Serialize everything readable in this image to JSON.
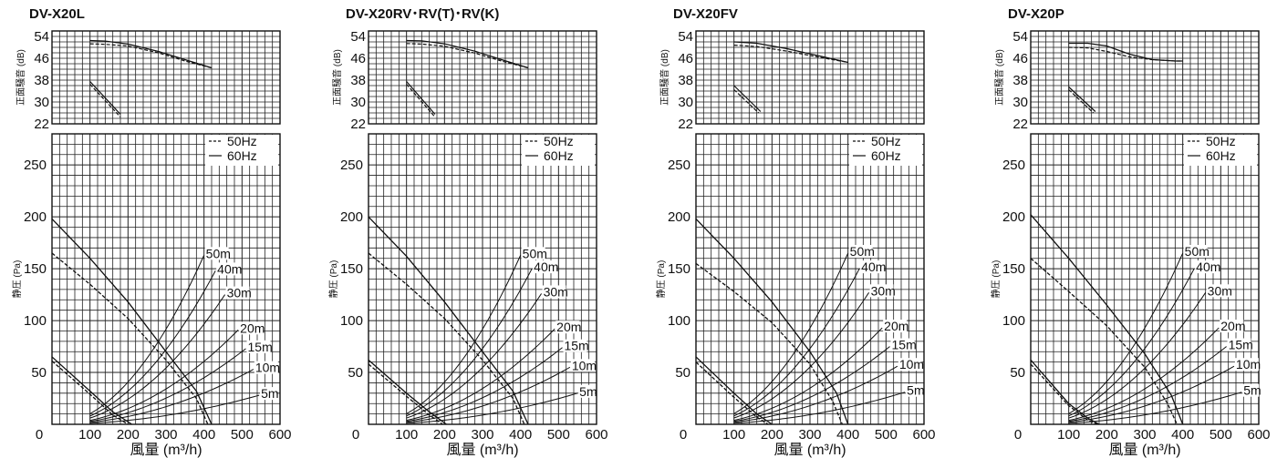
{
  "charts": [
    {
      "title": "DV-X20L",
      "xlabel": "風量 (m³/h)",
      "noise": {
        "ylabel": "正面騒音 (dB)",
        "yticks": [
          "54",
          "46",
          "38",
          "30",
          "22"
        ],
        "ylim": [
          22,
          56
        ],
        "series": [
          {
            "name": "60Hz",
            "style": "solid",
            "x": [
              100,
              140,
              200,
              280,
              350,
              420
            ],
            "y": [
              52.5,
              52.3,
              51.2,
              48.5,
              45.5,
              42.5
            ]
          },
          {
            "name": "50Hz",
            "style": "dashed",
            "x": [
              100,
              140,
              200,
              280,
              350,
              420
            ],
            "y": [
              51.3,
              51.1,
              50.5,
              48,
              45,
              42.5
            ]
          },
          {
            "name": "60Hz",
            "style": "solid",
            "x": [
              100,
              180
            ],
            "y": [
              37.5,
              25.5
            ]
          },
          {
            "name": "50Hz",
            "style": "dashed",
            "x": [
              100,
              180
            ],
            "y": [
              36.5,
              24.5
            ]
          }
        ]
      },
      "pressure": {
        "ylabel": "静圧 (Pa)",
        "yticks": [
          "250",
          "200",
          "150",
          "100",
          "50"
        ],
        "ylim": [
          0,
          280
        ],
        "series": [
          {
            "name": "60Hz",
            "style": "solid",
            "x": [
              0,
              100,
              200,
              300,
              380,
              420
            ],
            "y": [
              198,
              160,
              118,
              70,
              32,
              0
            ]
          },
          {
            "name": "50Hz",
            "style": "dashed",
            "x": [
              0,
              100,
              200,
              300,
              380,
              410
            ],
            "y": [
              165,
              135,
              102,
              62,
              25,
              0
            ]
          },
          {
            "name": "60Hz",
            "style": "solid",
            "x": [
              0,
              100,
              160,
              210
            ],
            "y": [
              65,
              32,
              12,
              0
            ]
          },
          {
            "name": "50Hz",
            "style": "dashed",
            "x": [
              0,
              100,
              160,
              200
            ],
            "y": [
              61,
              29,
              9,
              0
            ]
          }
        ],
        "duct_curves": [
          {
            "label": "50m",
            "x_end": 400,
            "y_end": 163
          },
          {
            "label": "40m",
            "x_end": 430,
            "y_end": 148
          },
          {
            "label": "30m",
            "x_end": 455,
            "y_end": 125
          },
          {
            "label": "20m",
            "x_end": 490,
            "y_end": 91
          },
          {
            "label": "15m",
            "x_end": 510,
            "y_end": 73
          },
          {
            "label": "10m",
            "x_end": 530,
            "y_end": 53
          },
          {
            "label": "5m",
            "x_end": 545,
            "y_end": 28
          }
        ]
      }
    },
    {
      "title": "DV-X20RV･RV(T)･RV(K)",
      "xlabel": "風量 (m³/h)",
      "noise": {
        "ylabel": "正面騒音 (dB)",
        "yticks": [
          "54",
          "46",
          "38",
          "30",
          "22"
        ],
        "ylim": [
          22,
          56
        ],
        "series": [
          {
            "name": "60Hz",
            "style": "solid",
            "x": [
              100,
              140,
              200,
              280,
              350,
              420
            ],
            "y": [
              52.5,
              52.4,
              51.3,
              48.6,
              45.5,
              42.5
            ]
          },
          {
            "name": "50Hz",
            "style": "dashed",
            "x": [
              100,
              140,
              200,
              280,
              350,
              420
            ],
            "y": [
              51.4,
              51.2,
              50.4,
              47.9,
              45,
              42.5
            ]
          },
          {
            "name": "60Hz",
            "style": "solid",
            "x": [
              100,
              175
            ],
            "y": [
              37.5,
              25.5
            ]
          },
          {
            "name": "50Hz",
            "style": "dashed",
            "x": [
              100,
              175
            ],
            "y": [
              36.5,
              24.5
            ]
          }
        ]
      },
      "pressure": {
        "ylabel": "静圧 (Pa)",
        "yticks": [
          "250",
          "200",
          "150",
          "100",
          "50"
        ],
        "ylim": [
          0,
          280
        ],
        "series": [
          {
            "name": "60Hz",
            "style": "solid",
            "x": [
              0,
              100,
              200,
              300,
              380,
              420
            ],
            "y": [
              200,
              162,
              118,
              70,
              32,
              0
            ]
          },
          {
            "name": "50Hz",
            "style": "dashed",
            "x": [
              0,
              100,
              200,
              300,
              380,
              410
            ],
            "y": [
              165,
              135,
              102,
              62,
              25,
              0
            ]
          },
          {
            "name": "60Hz",
            "style": "solid",
            "x": [
              0,
              100,
              160,
              205
            ],
            "y": [
              62,
              30,
              12,
              0
            ]
          },
          {
            "name": "50Hz",
            "style": "dashed",
            "x": [
              0,
              100,
              160,
              195
            ],
            "y": [
              58,
              27,
              9,
              0
            ]
          }
        ],
        "duct_curves": [
          {
            "label": "50m",
            "x_end": 400,
            "y_end": 163
          },
          {
            "label": "40m",
            "x_end": 430,
            "y_end": 150
          },
          {
            "label": "30m",
            "x_end": 455,
            "y_end": 126
          },
          {
            "label": "20m",
            "x_end": 490,
            "y_end": 92
          },
          {
            "label": "15m",
            "x_end": 510,
            "y_end": 74
          },
          {
            "label": "10m",
            "x_end": 530,
            "y_end": 55
          },
          {
            "label": "5m",
            "x_end": 550,
            "y_end": 30
          }
        ]
      }
    },
    {
      "title": "DV-X20FV",
      "xlabel": "風量 (m³/h)",
      "noise": {
        "ylabel": "正面騒音 (dB)",
        "yticks": [
          "54",
          "46",
          "38",
          "30",
          "22"
        ],
        "ylim": [
          22,
          56
        ],
        "series": [
          {
            "name": "60Hz",
            "style": "solid",
            "x": [
              100,
              160,
              240,
              320,
              400
            ],
            "y": [
              52,
              51.5,
              49.5,
              47,
              44.5
            ]
          },
          {
            "name": "50Hz",
            "style": "dashed",
            "x": [
              100,
              160,
              240,
              320,
              400
            ],
            "y": [
              50.8,
              50.3,
              48.6,
              46.5,
              44.5
            ]
          },
          {
            "name": "60Hz",
            "style": "solid",
            "x": [
              100,
              170
            ],
            "y": [
              36,
              26.5
            ]
          },
          {
            "name": "50Hz",
            "style": "dashed",
            "x": [
              100,
              165
            ],
            "y": [
              34.5,
              26
            ]
          }
        ]
      },
      "pressure": {
        "ylabel": "静圧 (Pa)",
        "yticks": [
          "250",
          "200",
          "150",
          "100",
          "50"
        ],
        "ylim": [
          0,
          280
        ],
        "series": [
          {
            "name": "60Hz",
            "style": "solid",
            "x": [
              0,
              100,
              200,
              300,
              370,
              400
            ],
            "y": [
              198,
              160,
              118,
              70,
              30,
              0
            ]
          },
          {
            "name": "50Hz",
            "style": "dashed",
            "x": [
              0,
              100,
              200,
              300,
              360,
              385
            ],
            "y": [
              155,
              128,
              98,
              58,
              22,
              0
            ]
          },
          {
            "name": "60Hz",
            "style": "solid",
            "x": [
              0,
              100,
              160,
              200
            ],
            "y": [
              65,
              30,
              10,
              0
            ]
          },
          {
            "name": "50Hz",
            "style": "dashed",
            "x": [
              0,
              100,
              160,
              190
            ],
            "y": [
              60,
              26,
              7,
              0
            ]
          }
        ],
        "duct_curves": [
          {
            "label": "50m",
            "x_end": 400,
            "y_end": 165
          },
          {
            "label": "40m",
            "x_end": 430,
            "y_end": 150
          },
          {
            "label": "30m",
            "x_end": 455,
            "y_end": 127
          },
          {
            "label": "20m",
            "x_end": 490,
            "y_end": 93
          },
          {
            "label": "15m",
            "x_end": 510,
            "y_end": 75
          },
          {
            "label": "10m",
            "x_end": 530,
            "y_end": 56
          },
          {
            "label": "5m",
            "x_end": 550,
            "y_end": 31
          }
        ]
      }
    },
    {
      "title": "DV-X20P",
      "xlabel": "風量 (m³/h)",
      "noise": {
        "ylabel": "正面騒音 (dB)",
        "yticks": [
          "54",
          "46",
          "38",
          "30",
          "22"
        ],
        "ylim": [
          22,
          56
        ],
        "series": [
          {
            "name": "60Hz",
            "style": "solid",
            "x": [
              100,
              150,
              200,
              260,
              320,
              380,
              400
            ],
            "y": [
              51.5,
              51.5,
              50.5,
              47.5,
              45.5,
              45,
              45
            ]
          },
          {
            "name": "50Hz",
            "style": "dashed",
            "x": [
              100,
              150,
              200,
              260,
              320,
              380,
              400
            ],
            "y": [
              50,
              49.8,
              48.5,
              46.5,
              45.5,
              45,
              45
            ]
          },
          {
            "name": "60Hz",
            "style": "solid",
            "x": [
              100,
              170
            ],
            "y": [
              35.5,
              26.5
            ]
          },
          {
            "name": "50Hz",
            "style": "dashed",
            "x": [
              100,
              165
            ],
            "y": [
              34.5,
              26
            ]
          }
        ]
      },
      "pressure": {
        "ylabel": "静圧 (Pa)",
        "yticks": [
          "250",
          "200",
          "150",
          "100",
          "50"
        ],
        "ylim": [
          0,
          280
        ],
        "series": [
          {
            "name": "60Hz",
            "style": "solid",
            "x": [
              0,
              100,
              200,
              300,
              370,
              400
            ],
            "y": [
              202,
              160,
              115,
              68,
              28,
              0
            ]
          },
          {
            "name": "50Hz",
            "style": "dashed",
            "x": [
              0,
              100,
              200,
              300,
              360,
              385
            ],
            "y": [
              160,
              128,
              95,
              55,
              20,
              0
            ]
          },
          {
            "name": "60Hz",
            "style": "solid",
            "x": [
              0,
              100,
              150,
              180
            ],
            "y": [
              62,
              20,
              6,
              0
            ]
          },
          {
            "name": "50Hz",
            "style": "dashed",
            "x": [
              0,
              100,
              150,
              175
            ],
            "y": [
              58,
              18,
              4,
              0
            ]
          }
        ],
        "duct_curves": [
          {
            "label": "50m",
            "x_end": 400,
            "y_end": 165
          },
          {
            "label": "40m",
            "x_end": 430,
            "y_end": 150
          },
          {
            "label": "30m",
            "x_end": 460,
            "y_end": 127
          },
          {
            "label": "20m",
            "x_end": 495,
            "y_end": 93
          },
          {
            "label": "15m",
            "x_end": 515,
            "y_end": 75
          },
          {
            "label": "10m",
            "x_end": 535,
            "y_end": 56
          },
          {
            "label": "5m",
            "x_end": 555,
            "y_end": 31
          }
        ]
      }
    }
  ],
  "xticks": [
    "0",
    "100",
    "200",
    "300",
    "400",
    "500",
    "600"
  ],
  "xlim": [
    0,
    600
  ],
  "legend": [
    {
      "label": "50Hz",
      "style": "dashed"
    },
    {
      "label": "60Hz",
      "style": "solid"
    }
  ]
}
